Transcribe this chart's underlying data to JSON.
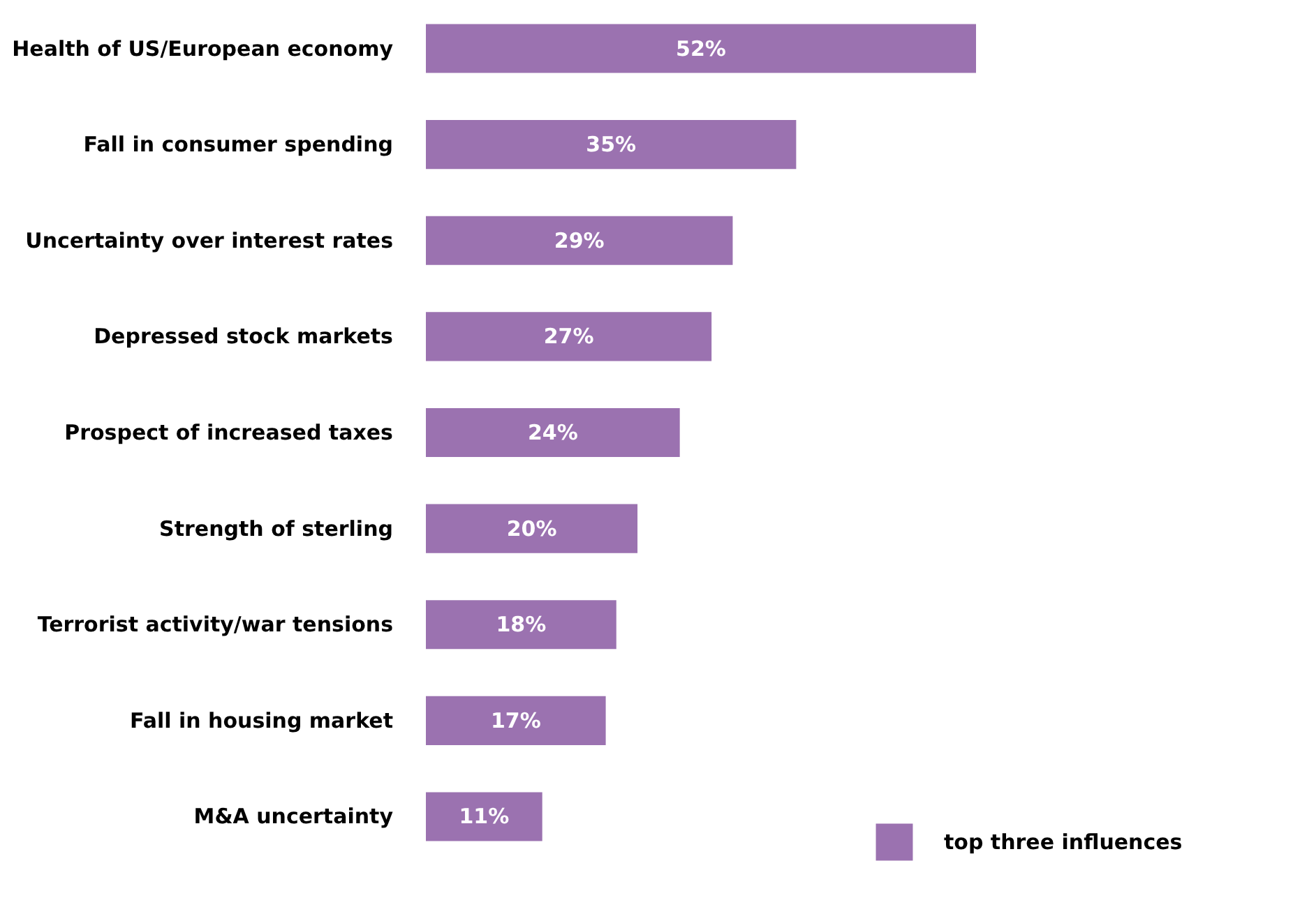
{
  "chart_data": {
    "type": "bar",
    "orientation": "horizontal",
    "legend": "bottom right",
    "categories": [
      "Health of US/European economy",
      "Fall in consumer spending",
      "Uncertainty over interest rates",
      "Depressed stock markets",
      "Prospect of increased taxes",
      "Strength of sterling",
      "Terrorist activity/war tensions",
      "Fall in housing market",
      "M&A uncertainty"
    ],
    "series": [
      {
        "name": "top three influences",
        "color": "#9b72b0",
        "values": [
          52,
          35,
          29,
          27,
          24,
          20,
          18,
          17,
          11
        ],
        "value_labels": [
          "52%",
          "35%",
          "29%",
          "27%",
          "24%",
          "20%",
          "18%",
          "17%",
          "11%"
        ]
      }
    ]
  }
}
